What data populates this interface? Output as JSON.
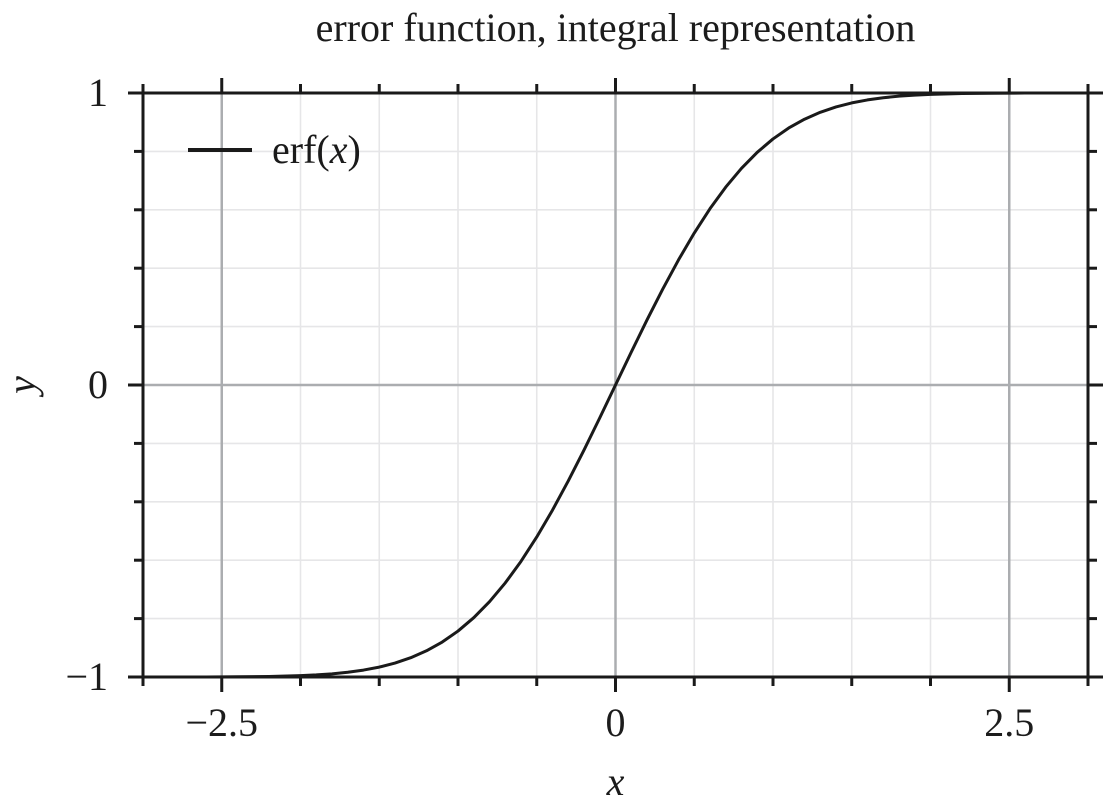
{
  "figure": {
    "background": "#ffffff",
    "foreground_color": "#1a1a1a"
  },
  "title": "error function, integral representation",
  "legend": {
    "position": "top-left",
    "entries": [
      {
        "label": "erf(x)",
        "parts": {
          "prefix": "erf(",
          "var": "x",
          "suffix": ")"
        },
        "color": "#1a1a1a"
      }
    ]
  },
  "chart_data": {
    "type": "line",
    "title": "error function, integral representation",
    "xlabel": "x",
    "ylabel": "y",
    "xlim": [
      -3,
      3
    ],
    "ylim": [
      -1,
      1
    ],
    "x_major_ticks": [
      {
        "value": -2.5,
        "label": "−2.5"
      },
      {
        "value": 0,
        "label": "0"
      },
      {
        "value": 2.5,
        "label": "2.5"
      }
    ],
    "y_major_ticks": [
      {
        "value": -1,
        "label": "−1"
      },
      {
        "value": 0,
        "label": "0"
      },
      {
        "value": 1,
        "label": "1"
      }
    ],
    "x_minor_step": 0.5,
    "y_minor_step": 0.2,
    "grid": {
      "on": true,
      "major_color": "#abadb0",
      "minor_color": "#e6e6e8"
    },
    "frame_color": "#1a1a1a",
    "legend_position": "top-left",
    "series": [
      {
        "name": "erf(x)",
        "color": "#1a1a1a",
        "x": [
          -3.0,
          -2.8,
          -2.6,
          -2.4,
          -2.2,
          -2.0,
          -1.9,
          -1.8,
          -1.7,
          -1.6,
          -1.5,
          -1.4,
          -1.3,
          -1.2,
          -1.1,
          -1.0,
          -0.9,
          -0.8,
          -0.7,
          -0.6,
          -0.5,
          -0.4,
          -0.3,
          -0.2,
          -0.1,
          0.0,
          0.1,
          0.2,
          0.3,
          0.4,
          0.5,
          0.6,
          0.7,
          0.8,
          0.9,
          1.0,
          1.1,
          1.2,
          1.3,
          1.4,
          1.5,
          1.6,
          1.7,
          1.8,
          1.9,
          2.0,
          2.2,
          2.4,
          2.6,
          2.8,
          3.0
        ],
        "y": [
          -1.0,
          -0.9999,
          -0.9998,
          -0.9993,
          -0.9981,
          -0.9953,
          -0.9928,
          -0.9891,
          -0.9838,
          -0.9763,
          -0.9661,
          -0.9523,
          -0.934,
          -0.9103,
          -0.8802,
          -0.8427,
          -0.7969,
          -0.7421,
          -0.6778,
          -0.6039,
          -0.5205,
          -0.4284,
          -0.3286,
          -0.2227,
          -0.1125,
          0.0,
          0.1125,
          0.2227,
          0.3286,
          0.4284,
          0.5205,
          0.6039,
          0.6778,
          0.7421,
          0.7969,
          0.8427,
          0.8802,
          0.9103,
          0.934,
          0.9523,
          0.9661,
          0.9763,
          0.9838,
          0.9891,
          0.9928,
          0.9953,
          0.9981,
          0.9993,
          0.9998,
          0.9999,
          1.0
        ]
      }
    ]
  }
}
